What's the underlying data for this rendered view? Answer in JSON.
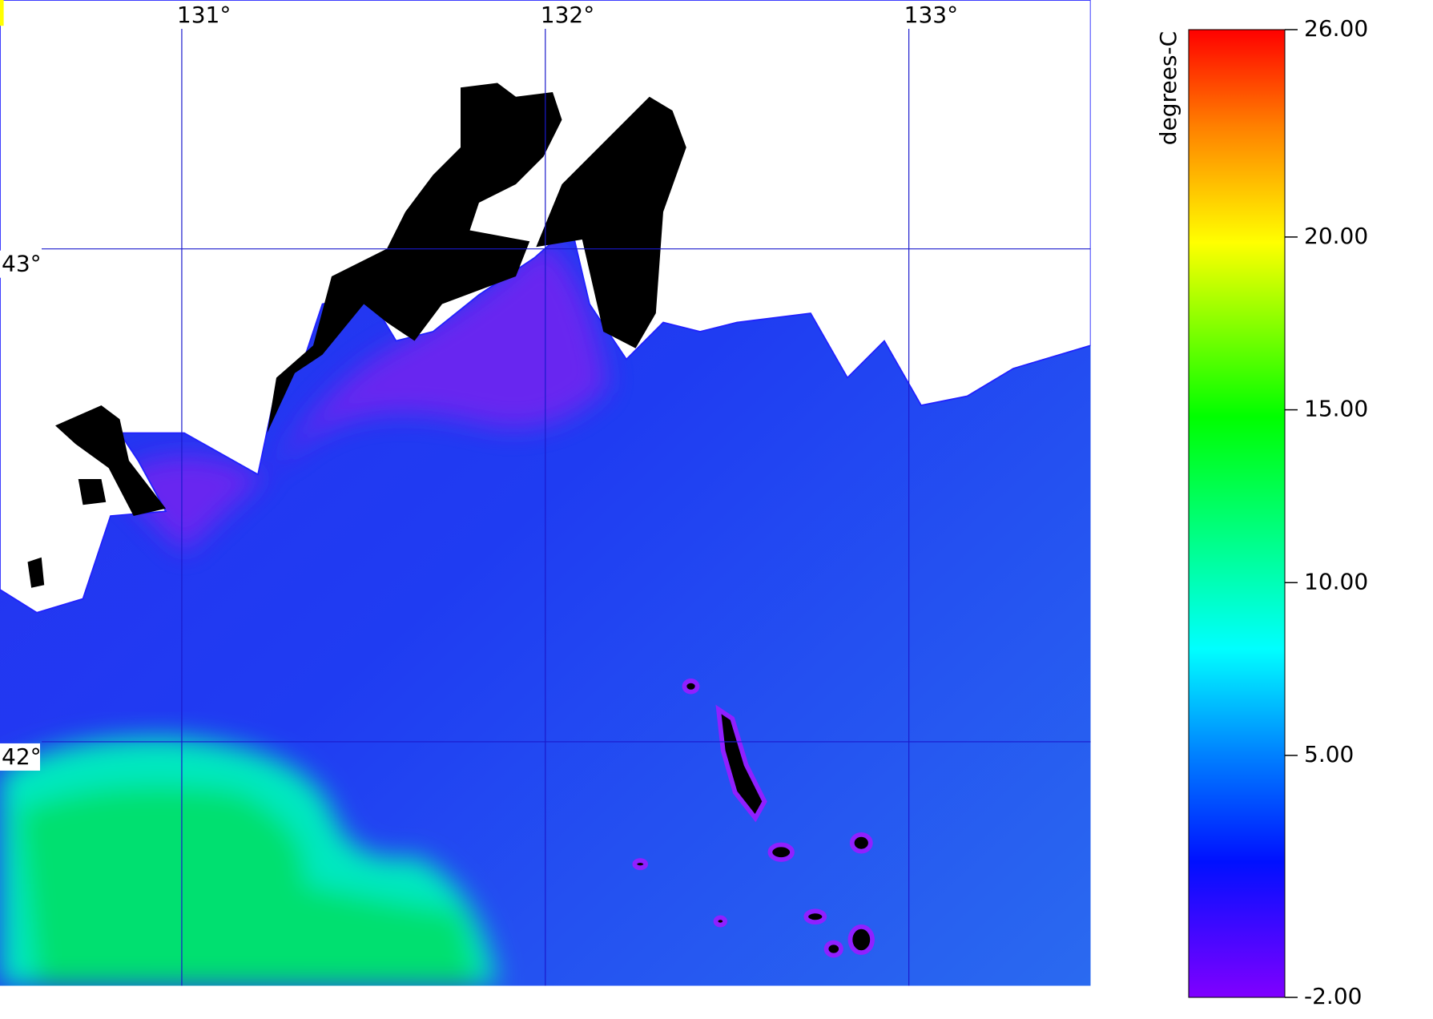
{
  "map": {
    "lon_lim": [
      130.5,
      133.5
    ],
    "lat_lim": [
      41.505,
      43.505
    ],
    "lon_ticks": [
      {
        "value": 131,
        "label": "131°"
      },
      {
        "value": 132,
        "label": "132°"
      },
      {
        "value": 133,
        "label": "133°"
      }
    ],
    "lat_ticks": [
      {
        "value": 43,
        "label": "43°"
      },
      {
        "value": 42,
        "label": "42°"
      }
    ],
    "grid_color": "#1a1acc"
  },
  "colorbar": {
    "label": "degrees-C",
    "lim": [
      -2,
      26
    ],
    "ticks": [
      {
        "value": 26,
        "label": "26.00"
      },
      {
        "value": 20,
        "label": "20.00"
      },
      {
        "value": 15,
        "label": "15.00"
      },
      {
        "value": 10,
        "label": "10.00"
      },
      {
        "value": 5,
        "label": "5.00"
      },
      {
        "value": -2,
        "label": "-2.00"
      }
    ]
  }
}
